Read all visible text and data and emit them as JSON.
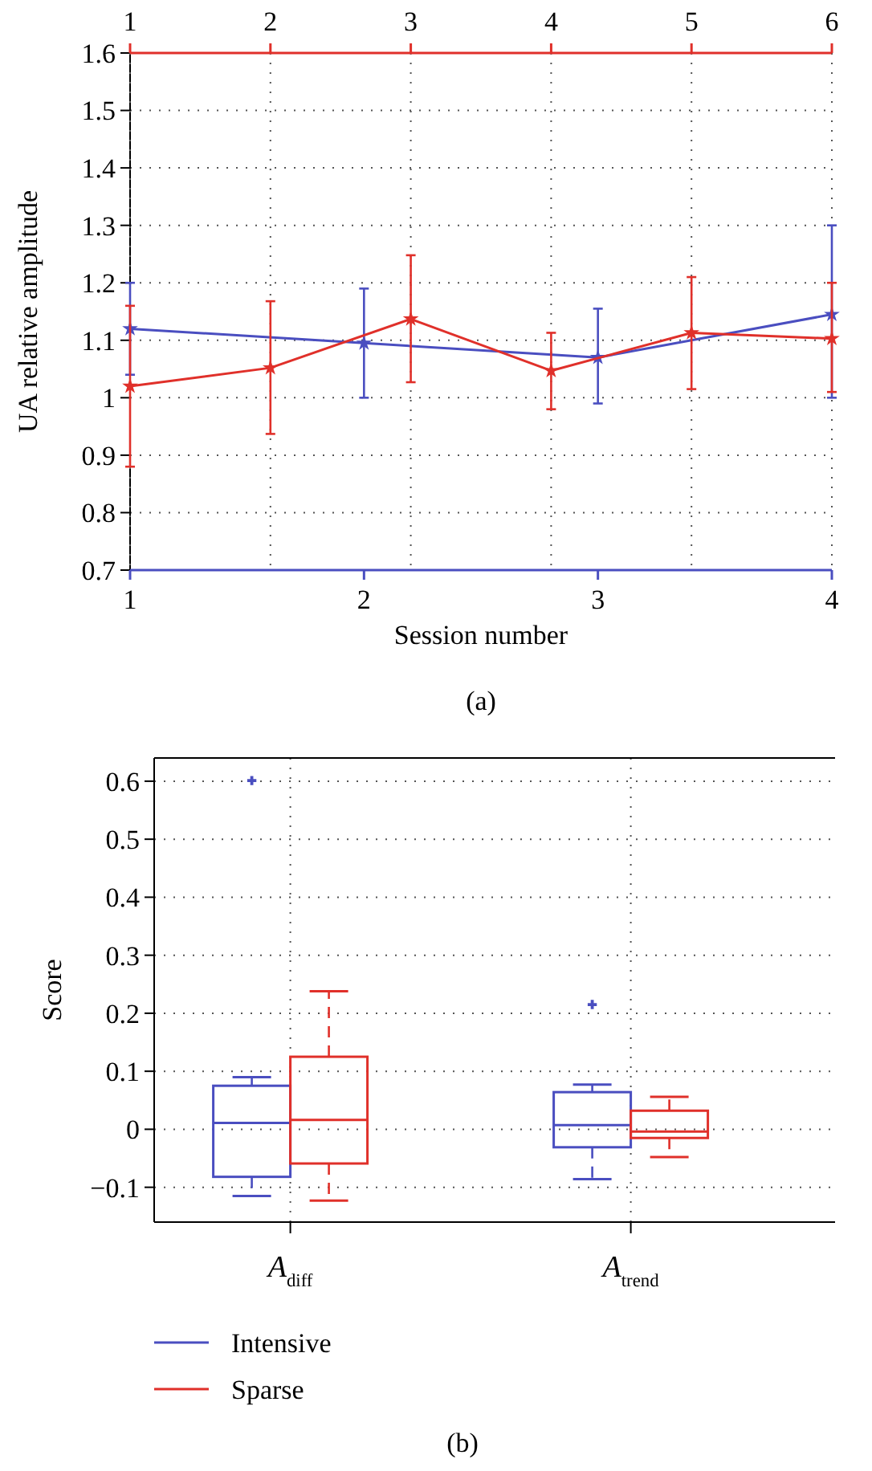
{
  "chart_data": [
    {
      "type": "line",
      "xlabel": "Session number",
      "ylabel": "UA relative amplitude",
      "xlim": [
        1,
        4
      ],
      "xticks": [
        1,
        2,
        3,
        4
      ],
      "x2lim": [
        1,
        6
      ],
      "x2ticks": [
        1,
        2,
        3,
        4,
        5,
        6
      ],
      "ylim": [
        0.7,
        1.6
      ],
      "yticks": [
        0.7,
        0.8,
        0.9,
        1,
        1.1,
        1.2,
        1.3,
        1.4,
        1.5,
        1.6
      ],
      "grid": true,
      "marker": "star",
      "annotations": [
        "(a)"
      ],
      "series": [
        {
          "color": "#4a4ec0",
          "x": [
            1,
            2,
            3,
            4
          ],
          "values": [
            1.12,
            1.095,
            1.07,
            1.145
          ],
          "errors": [
            [
              1.04,
              1.2
            ],
            [
              1.0,
              1.19
            ],
            [
              0.99,
              1.155
            ],
            [
              1.0,
              1.3
            ]
          ]
        },
        {
          "color": "#e0302a",
          "axis": "x2",
          "x": [
            1,
            2,
            3,
            4,
            5,
            6
          ],
          "values": [
            1.02,
            1.052,
            1.137,
            1.047,
            1.113,
            1.103
          ],
          "errors": [
            [
              0.88,
              1.16
            ],
            [
              0.937,
              1.168
            ],
            [
              1.027,
              1.248
            ],
            [
              0.98,
              1.113
            ],
            [
              1.015,
              1.21
            ],
            [
              1.01,
              1.2
            ]
          ]
        }
      ]
    },
    {
      "type": "box",
      "ylabel": "Score",
      "categories": [
        "A$_{diff}$",
        "A$_{trend}$"
      ],
      "ylim": [
        -0.16,
        0.64
      ],
      "yticks": [
        {
          "value": -0.1,
          "label": "−0.1"
        },
        0,
        0.1,
        0.2,
        0.3,
        0.4,
        0.5,
        0.6
      ],
      "grid": true,
      "legend": "bottom left",
      "annotations": [
        "(b)"
      ],
      "series": [
        {
          "name": "Intensive",
          "color": "#4a4ec0",
          "boxes": [
            {
              "low": -0.115,
              "q1": -0.082,
              "median": 0.011,
              "q3": 0.075,
              "high": 0.09,
              "outliers": [
                0.601
              ]
            },
            {
              "low": -0.086,
              "q1": -0.031,
              "median": 0.007,
              "q3": 0.064,
              "high": 0.077,
              "outliers": [
                0.215
              ]
            }
          ]
        },
        {
          "name": "Sparse",
          "color": "#e0302a",
          "boxes": [
            {
              "low": -0.123,
              "q1": -0.059,
              "median": 0.016,
              "q3": 0.125,
              "high": 0.238
            },
            {
              "low": -0.048,
              "q1": -0.015,
              "median": -0.004,
              "q3": 0.032,
              "high": 0.056
            }
          ]
        }
      ]
    }
  ]
}
